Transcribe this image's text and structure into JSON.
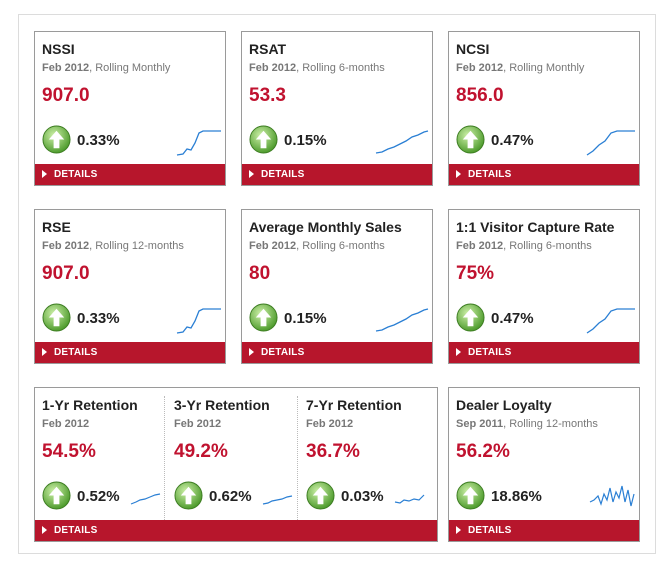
{
  "details_label": "DETAILS",
  "colors": {
    "accent": "#c0122f",
    "bar": "#b7162c",
    "spark": "#2a7fd4",
    "arrow": "#5aa83a"
  },
  "cards": [
    {
      "title": "NSSI",
      "date": "Feb 2012",
      "period": ", Rolling Monthly",
      "value": "907.0",
      "change": "0.33%"
    },
    {
      "title": "RSAT",
      "date": "Feb 2012",
      "period": ", Rolling 6-months",
      "value": "53.3",
      "change": "0.15%"
    },
    {
      "title": "NCSI",
      "date": "Feb 2012",
      "period": ", Rolling Monthly",
      "value": "856.0",
      "change": "0.47%"
    },
    {
      "title": "RSE",
      "date": "Feb 2012",
      "period": ", Rolling 12-months",
      "value": "907.0",
      "change": "0.33%"
    },
    {
      "title": "Average Monthly Sales",
      "date": "Feb 2012",
      "period": ", Rolling 6-months",
      "value": "80",
      "change": "0.15%"
    },
    {
      "title": "1:1 Visitor Capture Rate",
      "date": "Feb 2012",
      "period": ", Rolling 6-months",
      "value": "75%",
      "change": "0.47%"
    }
  ],
  "retention": [
    {
      "title": "1-Yr Retention",
      "date": "Feb 2012",
      "value": "54.5%",
      "change": "0.52%"
    },
    {
      "title": "3-Yr Retention",
      "date": "Feb 2012",
      "value": "49.2%",
      "change": "0.62%"
    },
    {
      "title": "7-Yr Retention",
      "date": "Feb 2012",
      "value": "36.7%",
      "change": "0.03%"
    }
  ],
  "loyalty": {
    "title": "Dealer Loyalty",
    "date": "Sep 2011",
    "period": ", Rolling 12-months",
    "value": "56.2%",
    "change": "18.86%"
  }
}
